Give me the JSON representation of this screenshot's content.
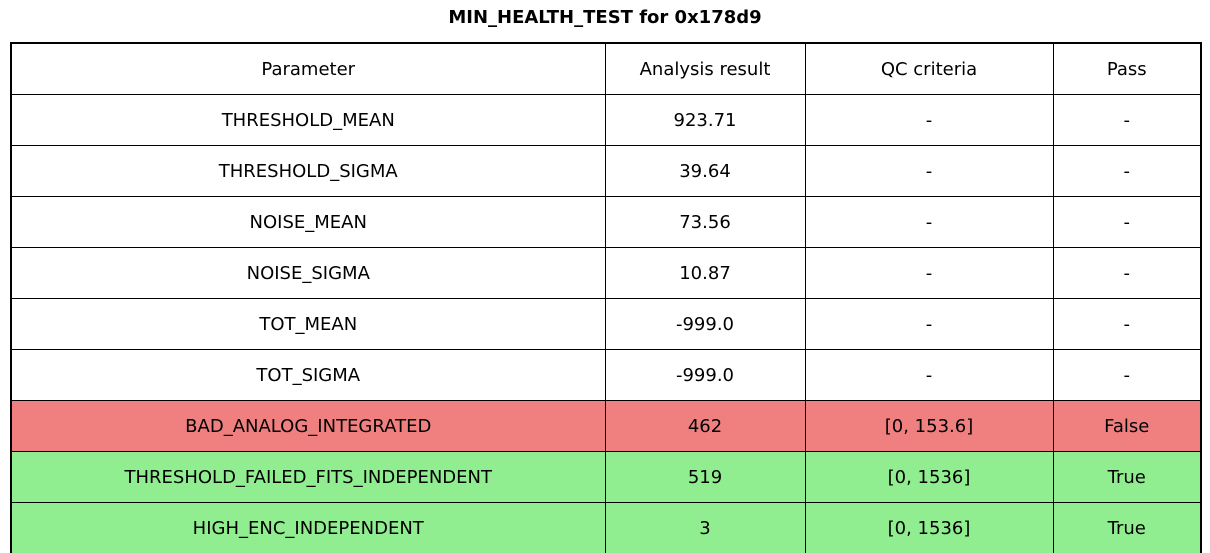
{
  "title": "MIN_HEALTH_TEST for 0x178d9",
  "colors": {
    "fail_row_bg": "#f08080",
    "pass_row_bg": "#90ee90",
    "default_row_bg": "#ffffff",
    "border": "#000000",
    "text": "#000000"
  },
  "chart_data": {
    "type": "table",
    "title": "MIN_HEALTH_TEST for 0x178d9",
    "columns": [
      "Parameter",
      "Analysis result",
      "QC criteria",
      "Pass"
    ],
    "rows": [
      {
        "cells": [
          "THRESHOLD_MEAN",
          "923.71",
          "-",
          "-"
        ],
        "status": "none"
      },
      {
        "cells": [
          "THRESHOLD_SIGMA",
          "39.64",
          "-",
          "-"
        ],
        "status": "none"
      },
      {
        "cells": [
          "NOISE_MEAN",
          "73.56",
          "-",
          "-"
        ],
        "status": "none"
      },
      {
        "cells": [
          "NOISE_SIGMA",
          "10.87",
          "-",
          "-"
        ],
        "status": "none"
      },
      {
        "cells": [
          "TOT_MEAN",
          "-999.0",
          "-",
          "-"
        ],
        "status": "none"
      },
      {
        "cells": [
          "TOT_SIGMA",
          "-999.0",
          "-",
          "-"
        ],
        "status": "none"
      },
      {
        "cells": [
          "BAD_ANALOG_INTEGRATED",
          "462",
          "[0, 153.6]",
          "False"
        ],
        "status": "fail"
      },
      {
        "cells": [
          "THRESHOLD_FAILED_FITS_INDEPENDENT",
          "519",
          "[0, 1536]",
          "True"
        ],
        "status": "pass"
      },
      {
        "cells": [
          "HIGH_ENC_INDEPENDENT",
          "3",
          "[0, 1536]",
          "True"
        ],
        "status": "pass"
      }
    ],
    "layout": {
      "grid": "all-borders",
      "header_position": "top",
      "cell_alignment": "center"
    }
  }
}
